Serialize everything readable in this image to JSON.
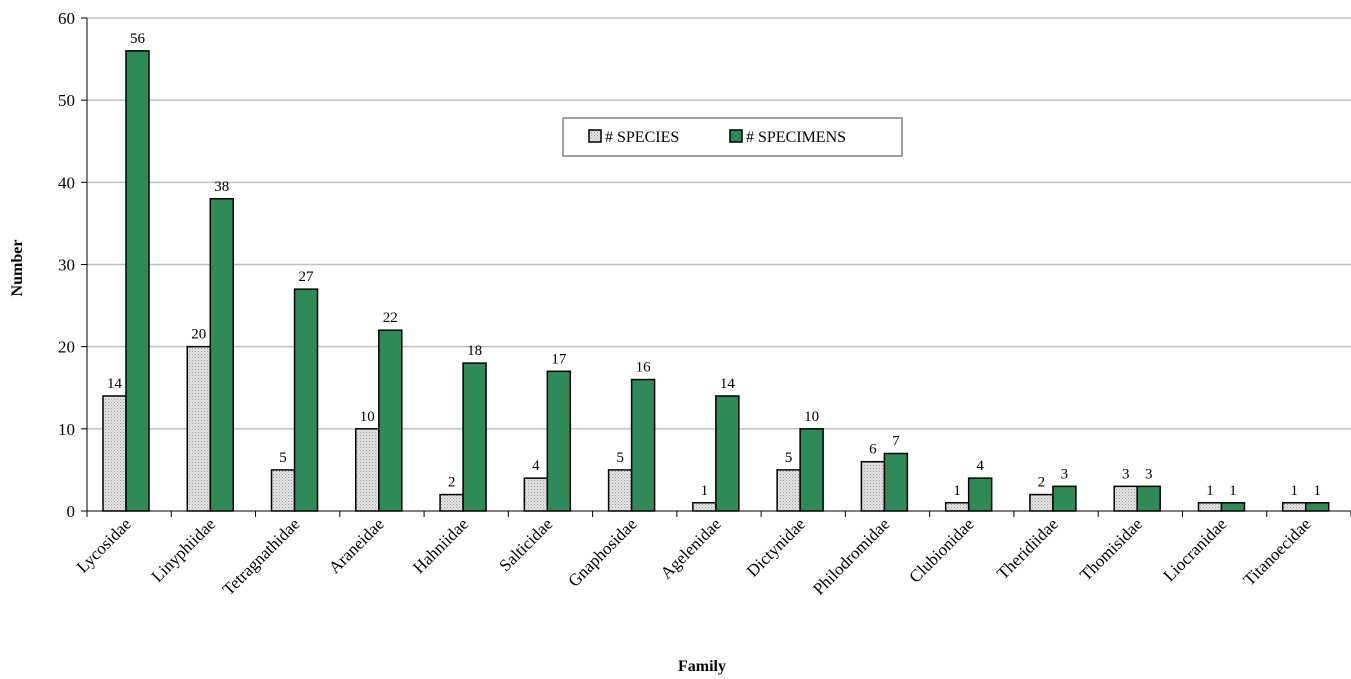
{
  "chart_data": {
    "type": "bar",
    "title": "",
    "xlabel": "Family",
    "ylabel": "Number",
    "ylim": [
      0,
      60
    ],
    "yticks": [
      0,
      10,
      20,
      30,
      40,
      50,
      60
    ],
    "grid": true,
    "legend_position": "top-center",
    "categories": [
      "Lycosidae",
      "Linyphiidae",
      "Tetragnathidae",
      "Araneidae",
      "Hahniidae",
      "Salticidae",
      "Gnaphosidae",
      "Agelenidae",
      "Dictynidae",
      "Philodromidae",
      "Clubionidae",
      "Theridiidae",
      "Thomisidae",
      "Liocranidae",
      "Titanoecidae"
    ],
    "series": [
      {
        "name": "# SPECIES",
        "color": "#d9d9d9",
        "values": [
          14,
          20,
          5,
          10,
          2,
          4,
          5,
          1,
          5,
          6,
          1,
          2,
          3,
          1,
          1
        ]
      },
      {
        "name": "# SPECIMENS",
        "color": "#2e8b57",
        "values": [
          56,
          38,
          27,
          22,
          18,
          17,
          16,
          14,
          10,
          7,
          4,
          3,
          3,
          1,
          1
        ]
      }
    ]
  }
}
